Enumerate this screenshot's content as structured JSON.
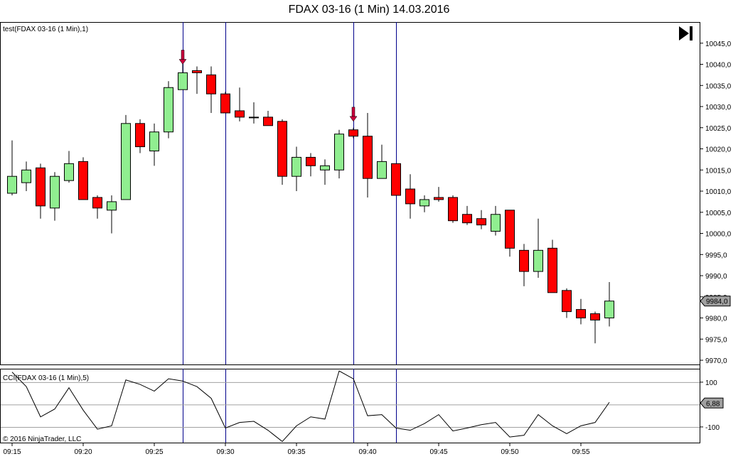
{
  "window": {
    "title": "FDAX 03-16 (1 Min)  14.03.2016",
    "copyright": "© 2016 NinjaTrader, LLC"
  },
  "chart_data": [
    {
      "type": "candlestick",
      "panel": "price",
      "label": "test(FDAX 03-16 (1 Min),1)",
      "x_labels": [
        "09:15",
        "09:20",
        "09:25",
        "09:30",
        "09:35",
        "09:40",
        "09:45",
        "09:50",
        "09:55"
      ],
      "ylim": [
        9969,
        10050
      ],
      "y_ticks": [
        10045,
        10040,
        10035,
        10030,
        10025,
        10020,
        10015,
        10010,
        10005,
        10000,
        9995,
        9990,
        9985,
        9980,
        9975,
        9970
      ],
      "y_tick_labels": [
        "10045,0",
        "10040,0",
        "10035,0",
        "10030,0",
        "10025,0",
        "10020,0",
        "10015,0",
        "10010,0",
        "10005,0",
        "10000,0",
        "9995,0",
        "9990,0",
        "9985,0",
        "9980,0",
        "9975,0",
        "9970,0"
      ],
      "last_price_label": "9984,0",
      "last_price": 9984,
      "colors": {
        "up": "#90ee90",
        "down": "#ff0000",
        "vline": "#00008b",
        "marker": "#c8003c"
      },
      "candles": [
        {
          "t": "09:15",
          "o": 10009.5,
          "h": 10022.0,
          "l": 10009.0,
          "c": 10013.5
        },
        {
          "t": "09:16",
          "o": 10012.0,
          "h": 10017.0,
          "l": 10010.0,
          "c": 10015.0
        },
        {
          "t": "09:17",
          "o": 10015.5,
          "h": 10016.5,
          "l": 10003.5,
          "c": 10006.5
        },
        {
          "t": "09:18",
          "o": 10006.0,
          "h": 10014.5,
          "l": 10003.0,
          "c": 10013.5
        },
        {
          "t": "09:19",
          "o": 10012.5,
          "h": 10019.5,
          "l": 10012.0,
          "c": 10016.5
        },
        {
          "t": "09:20",
          "o": 10017.0,
          "h": 10018.0,
          "l": 10008.0,
          "c": 10008.0
        },
        {
          "t": "09:21",
          "o": 10008.5,
          "h": 10009.0,
          "l": 10003.5,
          "c": 10006.0
        },
        {
          "t": "09:22",
          "o": 10005.5,
          "h": 10009.0,
          "l": 10000.0,
          "c": 10007.5
        },
        {
          "t": "09:23",
          "o": 10008.0,
          "h": 10028.0,
          "l": 10008.0,
          "c": 10026.0
        },
        {
          "t": "09:24",
          "o": 10026.0,
          "h": 10027.0,
          "l": 10019.0,
          "c": 10020.5
        },
        {
          "t": "09:25",
          "o": 10019.5,
          "h": 10026.0,
          "l": 10016.0,
          "c": 10024.0
        },
        {
          "t": "09:26",
          "o": 10024.0,
          "h": 10036.0,
          "l": 10022.5,
          "c": 10034.5
        },
        {
          "t": "09:27",
          "o": 10034.0,
          "h": 10040.5,
          "l": 10034.0,
          "c": 10038.0
        },
        {
          "t": "09:28",
          "o": 10038.5,
          "h": 10039.5,
          "l": 10033.0,
          "c": 10038.0
        },
        {
          "t": "09:29",
          "o": 10037.5,
          "h": 10039.5,
          "l": 10028.5,
          "c": 10033.0
        },
        {
          "t": "09:30",
          "o": 10033.0,
          "h": 10033.5,
          "l": 10028.5,
          "c": 10028.5
        },
        {
          "t": "09:31",
          "o": 10029.0,
          "h": 10034.5,
          "l": 10026.5,
          "c": 10027.5
        },
        {
          "t": "09:32",
          "o": 10027.5,
          "h": 10031.0,
          "l": 10026.0,
          "c": 10027.5
        },
        {
          "t": "09:33",
          "o": 10027.5,
          "h": 10029.0,
          "l": 10025.5,
          "c": 10025.5
        },
        {
          "t": "09:34",
          "o": 10026.5,
          "h": 10027.0,
          "l": 10011.5,
          "c": 10013.5
        },
        {
          "t": "09:35",
          "o": 10013.5,
          "h": 10020.5,
          "l": 10010.0,
          "c": 10018.0
        },
        {
          "t": "09:36",
          "o": 10018.0,
          "h": 10019.0,
          "l": 10013.5,
          "c": 10016.0
        },
        {
          "t": "09:37",
          "o": 10015.0,
          "h": 10017.5,
          "l": 10011.5,
          "c": 10016.0
        },
        {
          "t": "09:38",
          "o": 10015.0,
          "h": 10024.5,
          "l": 10013.0,
          "c": 10023.5
        },
        {
          "t": "09:39",
          "o": 10024.5,
          "h": 10025.0,
          "l": 10022.5,
          "c": 10023.0
        },
        {
          "t": "09:40",
          "o": 10023.0,
          "h": 10028.5,
          "l": 10008.5,
          "c": 10013.0
        },
        {
          "t": "09:41",
          "o": 10013.0,
          "h": 10021.0,
          "l": 10013.0,
          "c": 10017.0
        },
        {
          "t": "09:42",
          "o": 10016.5,
          "h": 10016.5,
          "l": 10009.0,
          "c": 10009.0
        },
        {
          "t": "09:43",
          "o": 10010.5,
          "h": 10014.0,
          "l": 10003.5,
          "c": 10007.0
        },
        {
          "t": "09:44",
          "o": 10006.5,
          "h": 10009.0,
          "l": 10005.0,
          "c": 10008.0
        },
        {
          "t": "09:45",
          "o": 10008.5,
          "h": 10011.0,
          "l": 10007.5,
          "c": 10008.0
        },
        {
          "t": "09:46",
          "o": 10008.5,
          "h": 10009.0,
          "l": 10002.5,
          "c": 10003.0
        },
        {
          "t": "09:47",
          "o": 10004.5,
          "h": 10006.5,
          "l": 10002.0,
          "c": 10002.5
        },
        {
          "t": "09:48",
          "o": 10003.5,
          "h": 10005.5,
          "l": 10001.0,
          "c": 10002.0
        },
        {
          "t": "09:49",
          "o": 10000.5,
          "h": 10006.5,
          "l": 9999.5,
          "c": 10004.5
        },
        {
          "t": "09:50",
          "o": 10005.5,
          "h": 10005.5,
          "l": 9994.5,
          "c": 9996.5
        },
        {
          "t": "09:51",
          "o": 9996.0,
          "h": 9997.5,
          "l": 9987.5,
          "c": 9991.0
        },
        {
          "t": "09:52",
          "o": 9991.0,
          "h": 10003.5,
          "l": 9989.5,
          "c": 9996.0
        },
        {
          "t": "09:53",
          "o": 9996.5,
          "h": 9998.5,
          "l": 9986.0,
          "c": 9986.0
        },
        {
          "t": "09:54",
          "o": 9986.5,
          "h": 9987.0,
          "l": 9980.0,
          "c": 9981.5
        },
        {
          "t": "09:55",
          "o": 9982.0,
          "h": 9984.5,
          "l": 9978.5,
          "c": 9980.0
        },
        {
          "t": "09:56",
          "o": 9981.0,
          "h": 9981.5,
          "l": 9974.0,
          "c": 9979.5
        },
        {
          "t": "09:57",
          "o": 9980.0,
          "h": 9988.5,
          "l": 9978.0,
          "c": 9984.0
        }
      ],
      "signal_lines": [
        "09:27",
        "09:30",
        "09:39",
        "09:42"
      ],
      "down_arrows": [
        {
          "t": "09:27",
          "price": 10040.0
        },
        {
          "t": "09:39",
          "price": 10026.5
        }
      ]
    },
    {
      "type": "line",
      "panel": "indicator",
      "label": "CCI(FDAX 03-16 (1 Min),5)",
      "ylim": [
        -170,
        160
      ],
      "reference_lines": [
        100,
        0,
        -100
      ],
      "y_tick_labels": [
        "100",
        "-100"
      ],
      "last_value_label": "6,88",
      "last_value": 6.88,
      "x": [
        "09:15",
        "09:16",
        "09:17",
        "09:18",
        "09:19",
        "09:20",
        "09:21",
        "09:22",
        "09:23",
        "09:24",
        "09:25",
        "09:26",
        "09:27",
        "09:28",
        "09:29",
        "09:30",
        "09:31",
        "09:32",
        "09:33",
        "09:34",
        "09:35",
        "09:36",
        "09:37",
        "09:38",
        "09:39",
        "09:40",
        "09:41",
        "09:42",
        "09:43",
        "09:44",
        "09:45",
        "09:46",
        "09:47",
        "09:48",
        "09:49",
        "09:50",
        "09:51",
        "09:52",
        "09:53",
        "09:54",
        "09:55",
        "09:56",
        "09:57"
      ],
      "values": [
        145,
        80,
        -55,
        -20,
        75,
        -25,
        -110,
        -95,
        110,
        90,
        60,
        115,
        105,
        80,
        28,
        -105,
        -80,
        -75,
        -115,
        -165,
        -95,
        -55,
        -65,
        150,
        115,
        -50,
        -45,
        -105,
        -115,
        -85,
        -45,
        -118,
        -105,
        -90,
        -80,
        -145,
        -137,
        -45,
        -95,
        -130,
        -95,
        -80,
        10
      ]
    }
  ]
}
